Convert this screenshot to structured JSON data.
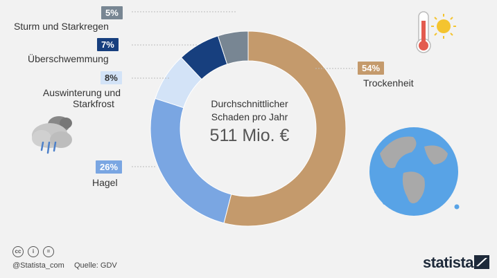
{
  "chart_data": {
    "type": "pie",
    "title": "Durchschnittlicher Schaden pro Jahr",
    "center_value": "511 Mio. €",
    "slices": [
      {
        "label": "Trockenheit",
        "value": 54,
        "display": "54%",
        "color": "#c49a6c"
      },
      {
        "label": "Hagel",
        "value": 26,
        "display": "26%",
        "color": "#7aa6e2"
      },
      {
        "label": "Auswinterung und Starkfrost",
        "value": 8,
        "display": "8%",
        "color": "#d3e3f7"
      },
      {
        "label": "Überschwemmung",
        "value": 7,
        "display": "7%",
        "color": "#173f7e"
      },
      {
        "label": "Sturm und Starkregen",
        "value": 5,
        "display": "5%",
        "color": "#788693"
      }
    ]
  },
  "labels": {
    "storm": "Sturm und Starkregen",
    "flood": "Überschwemmung",
    "frost_line1": "Auswinterung und",
    "frost_line2": "Starkfrost",
    "hail": "Hagel",
    "drought": "Trockenheit"
  },
  "badges": {
    "storm": "5%",
    "flood": "7%",
    "frost": "8%",
    "hail": "26%",
    "drought": "54%"
  },
  "center": {
    "title_line1": "Durchschnittlicher",
    "title_line2": "Schaden pro Jahr",
    "value": "511 Mio. €"
  },
  "footer": {
    "handle": "@Statista_com",
    "source": "Quelle: GDV",
    "brand": "statista",
    "license_icons": [
      "cc-icon",
      "person-icon",
      "equals-icon"
    ]
  }
}
